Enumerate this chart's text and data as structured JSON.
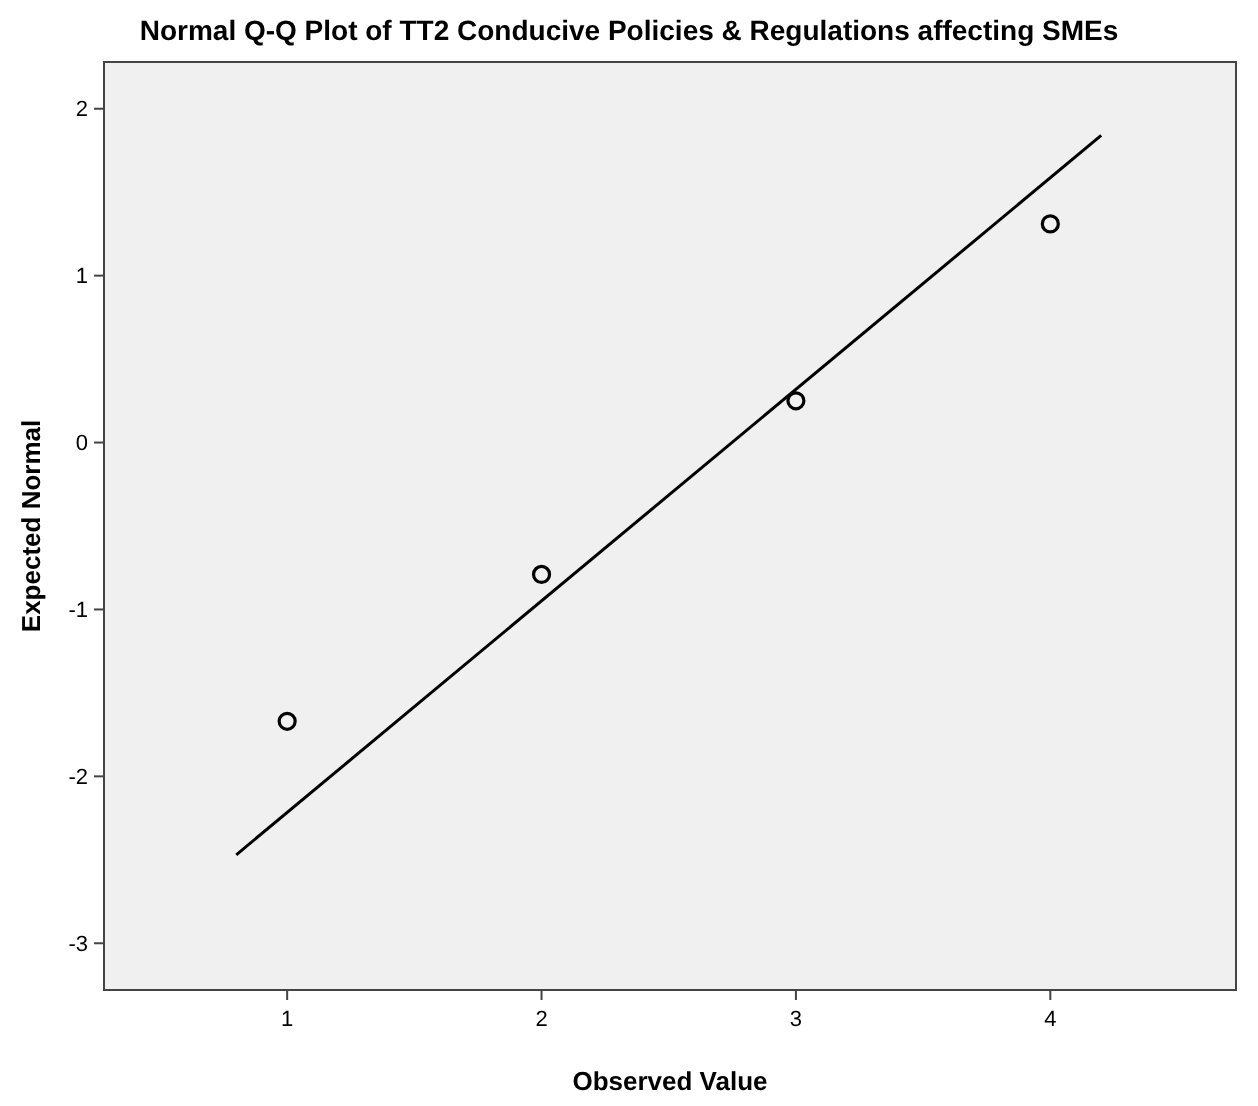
{
  "chart_data": {
    "type": "scatter",
    "title": "Normal Q-Q Plot of TT2 Conducive Policies & Regulations affecting SMEs",
    "xlabel": "Observed Value",
    "ylabel": "Expected Normal",
    "series": [
      {
        "color": "#000000",
        "marker": "circle",
        "x": [
          1,
          2,
          3,
          4
        ],
        "values": [
          -1.67,
          -0.79,
          0.25,
          1.31
        ]
      },
      {
        "type": "line",
        "color": "#000000",
        "marker": "none",
        "x": [
          0.8,
          4.2
        ],
        "values": [
          -2.47,
          1.84
        ]
      }
    ],
    "xlim": [
      0.28,
      4.73
    ],
    "xticks": [
      1,
      2,
      3,
      4
    ],
    "ylim": [
      -3.28,
      2.28
    ],
    "yticks": [
      -3,
      -2,
      -1,
      0,
      1,
      2
    ],
    "grid": false
  }
}
